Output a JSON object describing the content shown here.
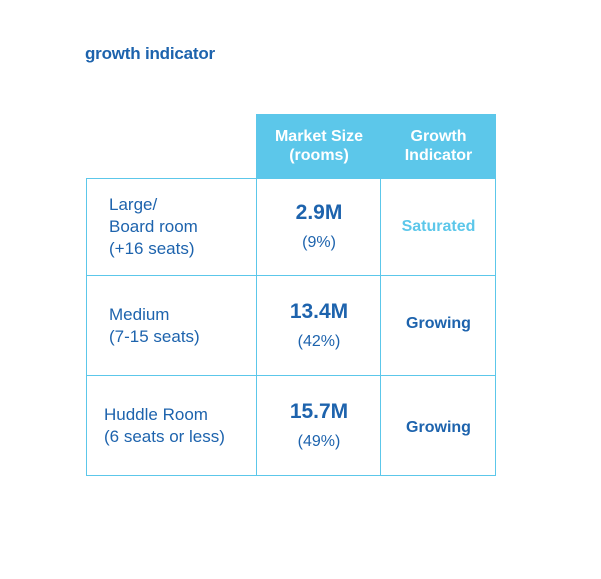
{
  "title": "growth indicator",
  "header": {
    "market_size": [
      "Market Size",
      "(rooms)"
    ],
    "growth_indicator": [
      "Growth",
      "Indicator"
    ]
  },
  "rows": [
    {
      "label": [
        "Large/",
        "Board room",
        "(+16 seats)"
      ],
      "size": "2.9M",
      "share": "(9%)",
      "growth": "Saturated"
    },
    {
      "label": [
        "Medium",
        "(7-15 seats)"
      ],
      "size": "13.4M",
      "share": "(42%)",
      "growth": "Growing"
    },
    {
      "label": [
        "Huddle Room",
        "(6 seats or less)"
      ],
      "size": "15.7M",
      "share": "(49%)",
      "growth": "Growing"
    }
  ],
  "colors": {
    "accent": "#5cc7ea",
    "text": "#1d63ad"
  }
}
